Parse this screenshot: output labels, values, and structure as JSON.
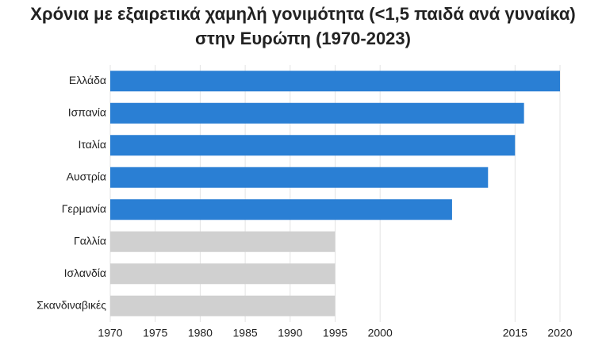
{
  "chart_data": {
    "type": "barh",
    "title": "Χρόνια με εξαιρετικά χαμηλή γονιμότητα (<1,5 παιδά ανά γυναίκα) στην Ευρώπη (1970-2023)",
    "categories": [
      "Ελλάδα",
      "Ισπανία",
      "Ιταλία",
      "Αυστρία",
      "Γερμανία",
      "Γαλλία",
      "Ισλανδία",
      "Σκανδιναβικές"
    ],
    "values": [
      2020,
      2016,
      2015,
      2012,
      2008,
      1995,
      1995,
      1995
    ],
    "colors": [
      "#2a7fd4",
      "#2a7fd4",
      "#2a7fd4",
      "#2a7fd4",
      "#2a7fd4",
      "#d0d0d0",
      "#d0d0d0",
      "#d0d0d0"
    ],
    "xlim": [
      1970,
      2020
    ],
    "xticks": [
      1970,
      1975,
      1980,
      1985,
      1990,
      1995,
      2000,
      2015,
      2020
    ],
    "grid": true
  }
}
